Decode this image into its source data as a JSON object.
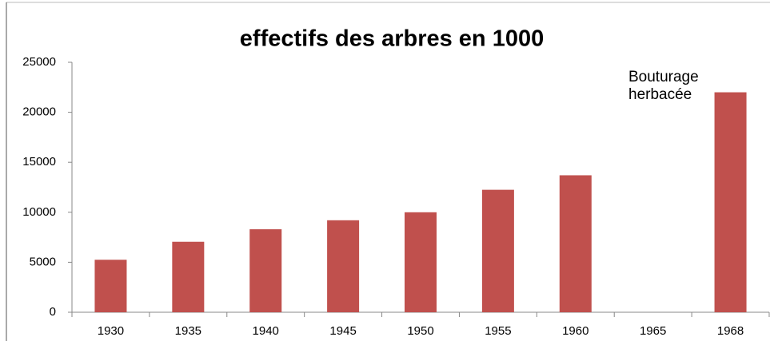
{
  "chart_data": {
    "type": "bar",
    "title": "effectifs des arbres en 1000",
    "categories": [
      "1930",
      "1935",
      "1940",
      "1945",
      "1950",
      "1955",
      "1960",
      "1965",
      "1968"
    ],
    "values": [
      5250,
      7050,
      8300,
      9200,
      10000,
      12250,
      13700,
      null,
      22000
    ],
    "color": "#c0504d",
    "ylim": [
      0,
      25000
    ],
    "yticks": [
      0,
      5000,
      10000,
      15000,
      20000,
      25000
    ],
    "annotation": [
      "Bouturage",
      "herbacée"
    ]
  }
}
